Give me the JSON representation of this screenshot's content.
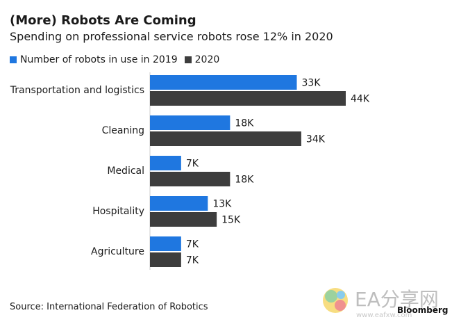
{
  "title": "(More) Robots Are Coming",
  "subtitle": "Spending on professional service robots rose 12% in 2020",
  "source": "Source: International Federation of Robotics",
  "brand": "Bloomberg",
  "watermark": {
    "text": "EA分享网",
    "url": "www.eafxw.com"
  },
  "colors": {
    "series_2019": "#1f77e0",
    "series_2020": "#3d3d3d",
    "text": "#1a1a1a",
    "axis": "#cccccc"
  },
  "chart_data": {
    "type": "bar",
    "orientation": "horizontal",
    "categories": [
      "Transportation and logistics",
      "Cleaning",
      "Medical",
      "Hospitality",
      "Agriculture"
    ],
    "series": [
      {
        "name": "Number of robots in use in 2019",
        "values": [
          33,
          18,
          7,
          13,
          7
        ],
        "labels": [
          "33K",
          "18K",
          "7K",
          "13K",
          "7K"
        ]
      },
      {
        "name": "2020",
        "values": [
          44,
          34,
          18,
          15,
          7
        ],
        "labels": [
          "44K",
          "34K",
          "18K",
          "15K",
          "7K"
        ]
      }
    ],
    "unit": "K",
    "xlim": [
      0,
      44
    ],
    "grid": false,
    "legend_position": "top-left"
  }
}
